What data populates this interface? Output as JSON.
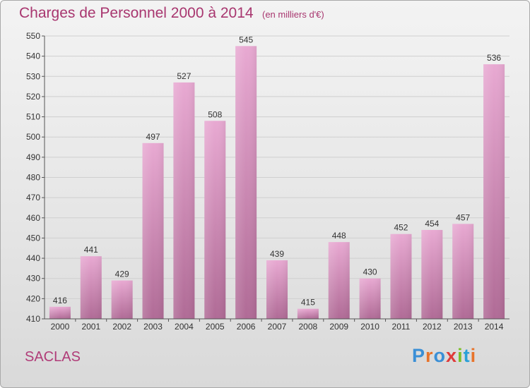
{
  "header": {
    "title": "Charges de Personnel 2000 à 2014",
    "subtitle": "(en milliers d'€)"
  },
  "commune": "SACLAS",
  "logo": {
    "text": "Proxiti",
    "letter_colors": [
      "#3a8fd6",
      "#e8732a",
      "#3a8fd6",
      "#e03a3a",
      "#7cbf2a",
      "#2aa0d8",
      "#e8732a"
    ]
  },
  "colors": {
    "title": "#a8366f",
    "bar_top": "#e8a9d2",
    "bar_bottom": "#b06b96",
    "grid": "#cfcfcf",
    "axis": "#555555"
  },
  "chart_data": {
    "type": "bar",
    "title": "Charges de Personnel 2000 à 2014",
    "subtitle": "(en milliers d'€)",
    "categories": [
      "2000",
      "2001",
      "2002",
      "2003",
      "2004",
      "2005",
      "2006",
      "2007",
      "2008",
      "2009",
      "2010",
      "2011",
      "2012",
      "2013",
      "2014"
    ],
    "values": [
      416,
      441,
      429,
      497,
      527,
      508,
      545,
      439,
      415,
      448,
      430,
      452,
      454,
      457,
      536
    ],
    "ylim": [
      410,
      550
    ],
    "yticks": [
      410,
      420,
      430,
      440,
      450,
      460,
      470,
      480,
      490,
      500,
      510,
      520,
      530,
      540,
      550
    ],
    "grid": true,
    "data_labels": true
  }
}
